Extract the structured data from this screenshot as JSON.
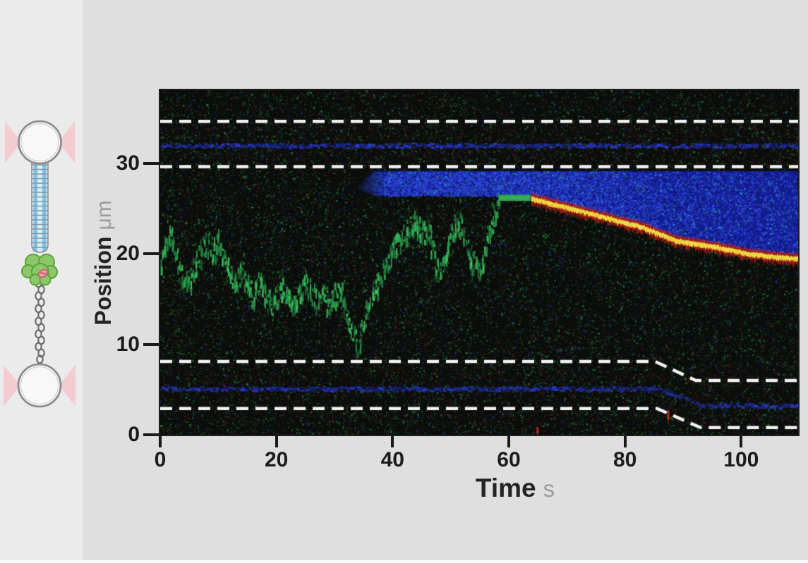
{
  "page": {
    "background": "#dfdfdf",
    "left_panel_background": "#ebebeb",
    "footer_strip_color": "#f8f8f8"
  },
  "schematic": {
    "name": "optical-tweezers-dual-trap-assay",
    "parts": [
      {
        "icon": "optical-trap-icon",
        "label": "optical trap (top)",
        "color": "#f3ccd1"
      },
      {
        "icon": "bead-icon",
        "label": "trapped bead (top)",
        "color": "#f7f8f7",
        "stroke": "#8d8d8d"
      },
      {
        "icon": "microtubule-icon",
        "label": "microtubule",
        "color": "#7ac3e6"
      },
      {
        "icon": "motor-complex-icon",
        "label": "motor protein complex",
        "color": "#8cc868"
      },
      {
        "icon": "adaptor-icon",
        "label": "adaptor subunit",
        "color": "#eba3a8"
      },
      {
        "icon": "tether-coil-icon",
        "label": "coiled tether",
        "color": "#6e6e6e"
      },
      {
        "icon": "bead-icon",
        "label": "trapped bead (bottom)",
        "color": "#f7f8f7",
        "stroke": "#8d8d8d"
      },
      {
        "icon": "optical-trap-icon",
        "label": "optical trap (bottom)",
        "color": "#f3ccd1"
      }
    ]
  },
  "chart_data": {
    "type": "kymograph",
    "title": "",
    "xlabel": "Time",
    "x_unit": "s",
    "ylabel": "Position",
    "y_unit": "μm",
    "x_ticks": [
      0,
      20,
      40,
      60,
      80,
      100
    ],
    "y_ticks": [
      0,
      10,
      20,
      30
    ],
    "x_range": [
      0,
      109.8
    ],
    "y_range": [
      0,
      38.1
    ],
    "grid": false,
    "background_color": "#0b0d0b",
    "dashed_line_color": "#f3f3f3",
    "trap_boundary_lines": [
      {
        "name": "top-bead-outer-edge",
        "points": [
          [
            0,
            34.65
          ],
          [
            109.8,
            34.65
          ]
        ]
      },
      {
        "name": "top-bead-inner-edge",
        "points": [
          [
            0,
            29.65
          ],
          [
            109.8,
            29.65
          ]
        ]
      },
      {
        "name": "bottom-bead-inner-edge",
        "points": [
          [
            0,
            8.1
          ],
          [
            85.2,
            8.1
          ],
          [
            92.2,
            6.0
          ],
          [
            109.8,
            6.0
          ]
        ]
      },
      {
        "name": "bottom-bead-outer-edge",
        "points": [
          [
            0,
            2.9
          ],
          [
            85.5,
            2.9
          ],
          [
            93.0,
            0.8
          ],
          [
            109.8,
            0.8
          ]
        ]
      }
    ],
    "bead_center_noise_bands": [
      {
        "color": "#2433c4",
        "points": [
          [
            0,
            32.05
          ],
          [
            109.8,
            32.05
          ]
        ]
      },
      {
        "color": "#2433c4",
        "points": [
          [
            0,
            5.15
          ],
          [
            86,
            5.15
          ],
          [
            93,
            3.3
          ],
          [
            109.8,
            3.3
          ]
        ]
      }
    ],
    "free_motor_trace": {
      "color": "#2fa24d",
      "points": [
        [
          0,
          18.5
        ],
        [
          1,
          21.2
        ],
        [
          2,
          22.3
        ],
        [
          3,
          19.5
        ],
        [
          4,
          16.8
        ],
        [
          5,
          17.5
        ],
        [
          6,
          19.2
        ],
        [
          7,
          20.6
        ],
        [
          8,
          21.6
        ],
        [
          9,
          20.4
        ],
        [
          10,
          21.8
        ],
        [
          11,
          20.2
        ],
        [
          12,
          18.4
        ],
        [
          13,
          17.0
        ],
        [
          14,
          18.2
        ],
        [
          15,
          16.6
        ],
        [
          16,
          15.4
        ],
        [
          17,
          17.2
        ],
        [
          18,
          15.6
        ],
        [
          19,
          14.4
        ],
        [
          20,
          15.6
        ],
        [
          21,
          16.6
        ],
        [
          22,
          15.0
        ],
        [
          23,
          14.4
        ],
        [
          24,
          15.6
        ],
        [
          25,
          17.2
        ],
        [
          26,
          16.2
        ],
        [
          27,
          15.0
        ],
        [
          28,
          16.4
        ],
        [
          29,
          14.4
        ],
        [
          30,
          15.6
        ],
        [
          31,
          16.2
        ],
        [
          32,
          13.6
        ],
        [
          33,
          11.6
        ],
        [
          34,
          10.2
        ],
        [
          35,
          12.6
        ],
        [
          36,
          15.0
        ],
        [
          37,
          16.4
        ],
        [
          38,
          17.6
        ],
        [
          39,
          19.2
        ],
        [
          40,
          21.0
        ],
        [
          41,
          21.6
        ],
        [
          42,
          22.2
        ],
        [
          43,
          23.2
        ],
        [
          44,
          23.8
        ],
        [
          45,
          22.4
        ],
        [
          46,
          23.2
        ],
        [
          47,
          20.4
        ],
        [
          48,
          17.6
        ],
        [
          49,
          19.2
        ],
        [
          50,
          22.6
        ],
        [
          51,
          23.8
        ],
        [
          52,
          23.0
        ],
        [
          53,
          20.4
        ],
        [
          54,
          19.0
        ],
        [
          55,
          18.2
        ],
        [
          56,
          21.0
        ],
        [
          57,
          23.6
        ],
        [
          58,
          25.4
        ]
      ]
    },
    "tethered_segment": {
      "color": "#2f9e51",
      "t_start": 58.2,
      "t_end": 63.8,
      "position": 26.2
    },
    "retraction_trace": {
      "core_color": "#f3ea3c",
      "fringe_color": "#bf2217",
      "points": [
        [
          63.9,
          26.05
        ],
        [
          70,
          25.1
        ],
        [
          77,
          23.9
        ],
        [
          83,
          22.9
        ],
        [
          89,
          21.4
        ],
        [
          95,
          20.8
        ],
        [
          101,
          20.0
        ],
        [
          105,
          19.7
        ],
        [
          109.8,
          19.4
        ]
      ]
    },
    "bead_signal_region": {
      "color": "#131c96",
      "start_t": 34.0,
      "tip_position": 27.45,
      "top_position": 29.15,
      "bottom_position_plateau": 26.45
    },
    "red_artifacts": [
      {
        "t": 87.3,
        "pos_top": 2.7,
        "pos_bottom": 1.6
      },
      {
        "t": 64.8,
        "pos_top": 0.85,
        "pos_bottom": 0.1
      }
    ]
  }
}
